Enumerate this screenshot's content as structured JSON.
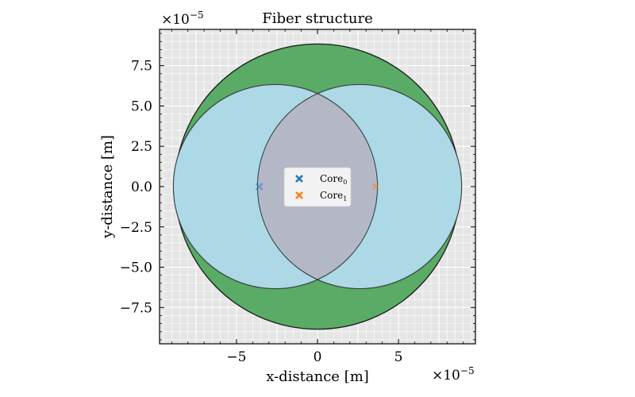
{
  "chart_data": {
    "type": "scatter",
    "title": "Fiber structure",
    "xlabel": "x-distance [m]",
    "ylabel": "y-distance [m]",
    "x_exponent_label": "×10",
    "x_exponent_power": "−5",
    "y_exponent_label": "×10",
    "y_exponent_power": "−5",
    "xlim": [
      -9.75,
      9.75
    ],
    "ylim": [
      -9.75,
      9.75
    ],
    "grid": true,
    "x_ticks": [
      {
        "value": -5,
        "label": "−5"
      },
      {
        "value": 0,
        "label": "0"
      },
      {
        "value": 5,
        "label": "5"
      }
    ],
    "y_ticks": [
      {
        "value": -7.5,
        "label": "−7.5"
      },
      {
        "value": -5,
        "label": "−5.0"
      },
      {
        "value": -2.5,
        "label": "−2.5"
      },
      {
        "value": 0,
        "label": "0.0"
      },
      {
        "value": 2.5,
        "label": "2.5"
      },
      {
        "value": 5,
        "label": "5.0"
      },
      {
        "value": 7.5,
        "label": "7.5"
      }
    ],
    "regions": [
      {
        "kind": "clad",
        "cx": 0,
        "cy": 0,
        "r": 8.8,
        "color": "#5aab66"
      },
      {
        "kind": "core",
        "cx": -2.6,
        "cy": 0,
        "r": 6.3,
        "color": "#add8e6"
      },
      {
        "kind": "core",
        "cx": 2.6,
        "cy": 0,
        "r": 6.3,
        "color": "#add8e6"
      }
    ],
    "series": [
      {
        "name": "Core",
        "subscript": "0",
        "marker": "x",
        "color": "#1f77b4",
        "x": -3.6,
        "y": 0
      },
      {
        "name": "Core",
        "subscript": "1",
        "marker": "x",
        "color": "#ff7f0e",
        "x": 3.6,
        "y": 0
      }
    ],
    "legend_position": "center",
    "background_color": "#e5e5e5",
    "overlap_color": "#b4b7c6"
  }
}
